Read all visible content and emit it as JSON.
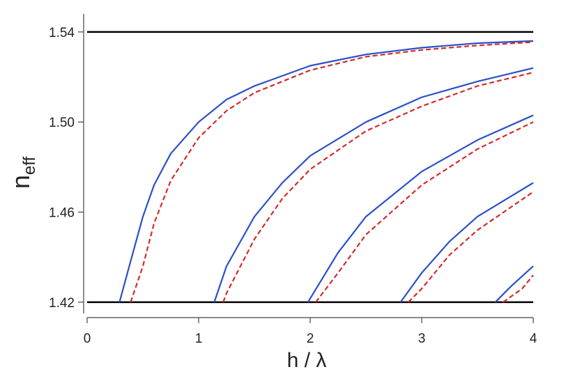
{
  "chart_data": {
    "type": "line",
    "xlabel": "h / λ",
    "ylabel": "n",
    "ylabel_subscript": "eff",
    "xlim": [
      0,
      4
    ],
    "ylim": [
      1.415,
      1.548
    ],
    "xticks": [
      0,
      1,
      2,
      3,
      4
    ],
    "yticks": [
      1.42,
      1.46,
      {
        "value": 1.5,
        "label": "1.50"
      },
      1.54
    ],
    "hlines": [
      1.42,
      1.54
    ],
    "hline_color": "#000000",
    "series": [
      {
        "color": "#2a4fc8",
        "dashed": false,
        "x": [
          0.29,
          0.4,
          0.5,
          0.6,
          0.75,
          1,
          1.25,
          1.5,
          2,
          2.5,
          3,
          3.5,
          4
        ],
        "values": [
          1.42,
          1.44,
          1.458,
          1.472,
          1.486,
          1.5,
          1.51,
          1.516,
          1.525,
          1.53,
          1.533,
          1.535,
          1.536
        ]
      },
      {
        "color": "#d42a2a",
        "dashed": true,
        "x": [
          0.39,
          0.5,
          0.6,
          0.75,
          1,
          1.25,
          1.5,
          2,
          2.5,
          3,
          3.5,
          4
        ],
        "values": [
          1.42,
          1.436,
          1.455,
          1.474,
          1.493,
          1.505,
          1.513,
          1.523,
          1.529,
          1.532,
          1.534,
          1.5355
        ]
      },
      {
        "color": "#2a4fc8",
        "dashed": false,
        "x": [
          1.14,
          1.25,
          1.5,
          1.75,
          2,
          2.5,
          3,
          3.5,
          4
        ],
        "values": [
          1.42,
          1.436,
          1.458,
          1.473,
          1.485,
          1.5,
          1.511,
          1.518,
          1.524
        ]
      },
      {
        "color": "#d42a2a",
        "dashed": true,
        "x": [
          1.22,
          1.25,
          1.5,
          1.75,
          2,
          2.5,
          3,
          3.5,
          4
        ],
        "values": [
          1.42,
          1.424,
          1.448,
          1.466,
          1.479,
          1.496,
          1.507,
          1.516,
          1.522
        ]
      },
      {
        "color": "#2a4fc8",
        "dashed": false,
        "x": [
          1.98,
          2.25,
          2.5,
          3,
          3.5,
          4
        ],
        "values": [
          1.42,
          1.442,
          1.458,
          1.478,
          1.492,
          1.503
        ]
      },
      {
        "color": "#d42a2a",
        "dashed": true,
        "x": [
          2.05,
          2.25,
          2.5,
          3,
          3.5,
          4
        ],
        "values": [
          1.42,
          1.433,
          1.45,
          1.472,
          1.488,
          1.5
        ]
      },
      {
        "color": "#2a4fc8",
        "dashed": false,
        "x": [
          2.81,
          3,
          3.25,
          3.5,
          4
        ],
        "values": [
          1.42,
          1.433,
          1.447,
          1.458,
          1.473
        ]
      },
      {
        "color": "#d42a2a",
        "dashed": true,
        "x": [
          2.88,
          3,
          3.25,
          3.5,
          4
        ],
        "values": [
          1.42,
          1.426,
          1.441,
          1.452,
          1.469
        ]
      },
      {
        "color": "#2a4fc8",
        "dashed": false,
        "x": [
          3.66,
          3.8,
          4
        ],
        "values": [
          1.42,
          1.427,
          1.436
        ]
      },
      {
        "color": "#d42a2a",
        "dashed": true,
        "x": [
          3.73,
          3.9,
          4
        ],
        "values": [
          1.42,
          1.426,
          1.432
        ]
      }
    ]
  }
}
